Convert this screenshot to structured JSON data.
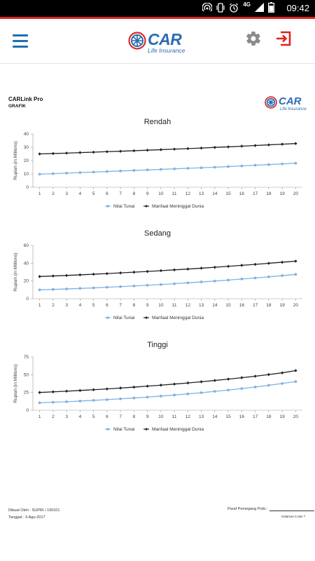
{
  "status_bar": {
    "time": "09:42",
    "network": "4G"
  },
  "app_bar": {
    "logo_text": "CAR",
    "logo_subtext": "Life Insurance"
  },
  "document": {
    "title": "CARLink Pro",
    "subtitle": "GRAFIK",
    "logo_text": "CAR",
    "logo_subtext": "Life Insurance",
    "footer": {
      "created_by": "Dibuat Oleh : SUPRI / 100101",
      "date": "Tanggal : 3-Agu-2017",
      "signature_label": "Paraf Pemegang Polis :",
      "page": "Halaman 5 dari 7"
    }
  },
  "colors": {
    "accent": "#1d6fb2",
    "red": "#e3231b",
    "series_cash": "#7fb2e0",
    "series_death": "#222222"
  },
  "chart_data": [
    {
      "type": "line",
      "title": "Rendah",
      "ylabel": "Rupiah (in Millions)",
      "ylim": [
        0,
        40
      ],
      "yticks": [
        0,
        10,
        20,
        30,
        40
      ],
      "x": [
        1,
        2,
        3,
        4,
        5,
        6,
        7,
        8,
        9,
        10,
        11,
        12,
        13,
        14,
        15,
        16,
        17,
        18,
        19,
        20
      ],
      "series": [
        {
          "name": "Nilai Tunai",
          "values": [
            9.8,
            10.2,
            10.6,
            11.0,
            11.4,
            11.8,
            12.2,
            12.6,
            13.0,
            13.4,
            13.8,
            14.2,
            14.6,
            15.0,
            15.5,
            16.0,
            16.5,
            17.0,
            17.5,
            18.0
          ]
        },
        {
          "name": "Manfaat Meninggal Dunia",
          "values": [
            25.0,
            25.3,
            25.6,
            26.0,
            26.3,
            26.7,
            27.0,
            27.4,
            27.8,
            28.2,
            28.6,
            29.0,
            29.4,
            29.9,
            30.3,
            30.8,
            31.3,
            31.8,
            32.3,
            32.8
          ]
        }
      ],
      "legend": "bottom",
      "grid": false
    },
    {
      "type": "line",
      "title": "Sedang",
      "ylabel": "Rupiah (in Millions)",
      "ylim": [
        0,
        60
      ],
      "yticks": [
        0,
        20,
        40,
        60
      ],
      "x": [
        1,
        2,
        3,
        4,
        5,
        6,
        7,
        8,
        9,
        10,
        11,
        12,
        13,
        14,
        15,
        16,
        17,
        18,
        19,
        20
      ],
      "series": [
        {
          "name": "Nilai Tunai",
          "values": [
            10.0,
            10.5,
            11.0,
            11.6,
            12.2,
            12.9,
            13.6,
            14.4,
            15.2,
            16.0,
            16.9,
            17.9,
            18.9,
            19.9,
            21.0,
            22.2,
            23.4,
            24.7,
            26.0,
            27.4
          ]
        },
        {
          "name": "Manfaat Meninggal Dunia",
          "values": [
            25.0,
            25.6,
            26.2,
            26.9,
            27.6,
            28.3,
            29.1,
            29.9,
            30.7,
            31.6,
            32.5,
            33.4,
            34.4,
            35.4,
            36.5,
            37.6,
            38.7,
            39.9,
            41.1,
            42.3
          ]
        }
      ],
      "legend": "bottom",
      "grid": false
    },
    {
      "type": "line",
      "title": "Tinggi",
      "ylabel": "Rupiah (in Millions)",
      "ylim": [
        0,
        75
      ],
      "yticks": [
        0,
        25,
        50,
        75
      ],
      "x": [
        1,
        2,
        3,
        4,
        5,
        6,
        7,
        8,
        9,
        10,
        11,
        12,
        13,
        14,
        15,
        16,
        17,
        18,
        19,
        20
      ],
      "series": [
        {
          "name": "Nilai Tunai",
          "values": [
            10.5,
            11.2,
            12.0,
            12.9,
            13.9,
            14.9,
            16.0,
            17.2,
            18.5,
            19.9,
            21.4,
            23.0,
            24.7,
            26.5,
            28.4,
            30.5,
            32.7,
            35.1,
            37.6,
            40.3
          ]
        },
        {
          "name": "Manfaat Meninggal Dunia",
          "values": [
            25.0,
            25.9,
            26.8,
            27.8,
            28.9,
            30.0,
            31.2,
            32.5,
            33.9,
            35.3,
            36.8,
            38.4,
            40.1,
            41.9,
            43.8,
            45.8,
            47.9,
            50.2,
            52.6,
            55.8
          ]
        }
      ],
      "legend": "bottom",
      "grid": false
    }
  ]
}
